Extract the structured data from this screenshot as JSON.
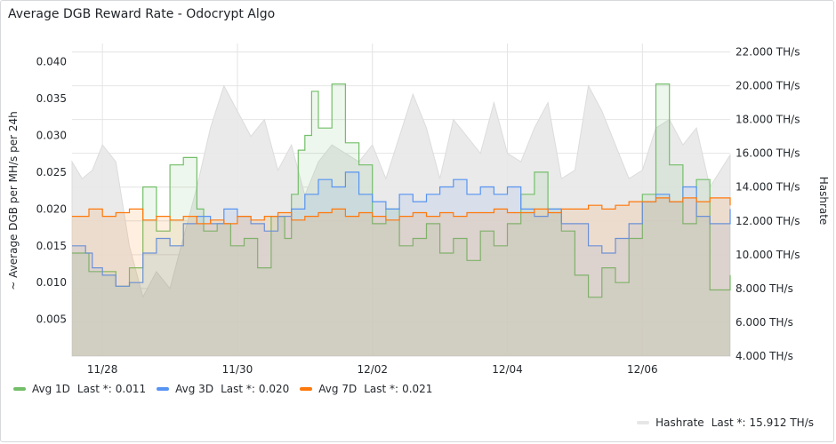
{
  "panel": {
    "title": "Average DGB Reward Rate - Odocrypt Algo"
  },
  "chart_data": {
    "type": "line",
    "title": "Average DGB Reward Rate - Odocrypt Algo",
    "ylabel": "~ Average DGB per MH/s per 24h",
    "y2label": "Hashrate",
    "x_ticks": [
      "11/28",
      "11/30",
      "12/02",
      "12/04",
      "12/06"
    ],
    "x_range_days": [
      27.55,
      37.3
    ],
    "ylim": [
      0,
      0.0425
    ],
    "y_ticks": [
      0.005,
      0.01,
      0.015,
      0.02,
      0.025,
      0.03,
      0.035,
      0.04
    ],
    "y_tick_labels": [
      "0.005",
      "0.010",
      "0.015",
      "0.020",
      "0.025",
      "0.030",
      "0.035",
      "0.040"
    ],
    "y2lim": [
      4.0,
      22.5
    ],
    "y2_ticks": [
      4,
      6,
      8,
      10,
      12,
      14,
      16,
      18,
      20,
      22
    ],
    "y2_tick_labels": [
      "4.000 TH/s",
      "6.000 TH/s",
      "8.000 TH/s",
      "10.000 TH/s",
      "12.000 TH/s",
      "14.000 TH/s",
      "16.000 TH/s",
      "18.000 TH/s",
      "20.000 TH/s",
      "22.000 TH/s"
    ],
    "grid": true,
    "legend_position": "bottom",
    "series": [
      {
        "name": "Avg 1D",
        "color": "#73bf69",
        "last_label": "Last *:",
        "last_value": "0.011",
        "x": [
          27.55,
          27.75,
          27.8,
          28.2,
          28.4,
          28.6,
          28.8,
          29.0,
          29.2,
          29.4,
          29.5,
          29.7,
          29.9,
          30.1,
          30.3,
          30.5,
          30.7,
          30.8,
          30.9,
          31.0,
          31.1,
          31.2,
          31.4,
          31.6,
          31.8,
          32.0,
          32.2,
          32.4,
          32.6,
          32.8,
          33.0,
          33.2,
          33.4,
          33.6,
          33.8,
          34.0,
          34.2,
          34.4,
          34.6,
          34.8,
          35.0,
          35.2,
          35.4,
          35.6,
          35.8,
          36.0,
          36.2,
          36.4,
          36.6,
          36.8,
          37.0,
          37.3
        ],
        "y": [
          0.014,
          0.014,
          0.0115,
          0.0095,
          0.012,
          0.023,
          0.017,
          0.026,
          0.027,
          0.02,
          0.017,
          0.018,
          0.015,
          0.016,
          0.012,
          0.019,
          0.016,
          0.022,
          0.028,
          0.03,
          0.036,
          0.031,
          0.037,
          0.029,
          0.026,
          0.018,
          0.02,
          0.015,
          0.016,
          0.018,
          0.014,
          0.016,
          0.013,
          0.017,
          0.015,
          0.018,
          0.022,
          0.025,
          0.02,
          0.017,
          0.011,
          0.008,
          0.012,
          0.01,
          0.016,
          0.022,
          0.037,
          0.026,
          0.018,
          0.024,
          0.009,
          0.011
        ]
      },
      {
        "name": "Avg 3D",
        "color": "#5794f2",
        "last_label": "Last *:",
        "last_value": "0.020",
        "x": [
          27.55,
          27.75,
          27.85,
          28.0,
          28.2,
          28.4,
          28.6,
          28.8,
          29.0,
          29.2,
          29.4,
          29.6,
          29.8,
          30.0,
          30.2,
          30.4,
          30.6,
          30.8,
          31.0,
          31.2,
          31.4,
          31.6,
          31.8,
          32.0,
          32.2,
          32.4,
          32.6,
          32.8,
          33.0,
          33.2,
          33.4,
          33.6,
          33.8,
          34.0,
          34.2,
          34.4,
          34.6,
          34.8,
          35.0,
          35.2,
          35.4,
          35.6,
          35.8,
          36.0,
          36.2,
          36.4,
          36.6,
          36.8,
          37.0,
          37.3
        ],
        "y": [
          0.015,
          0.014,
          0.012,
          0.011,
          0.0095,
          0.01,
          0.014,
          0.016,
          0.015,
          0.018,
          0.019,
          0.018,
          0.02,
          0.019,
          0.018,
          0.017,
          0.019,
          0.02,
          0.022,
          0.024,
          0.023,
          0.025,
          0.022,
          0.021,
          0.02,
          0.022,
          0.021,
          0.022,
          0.023,
          0.024,
          0.022,
          0.023,
          0.022,
          0.023,
          0.02,
          0.019,
          0.02,
          0.018,
          0.018,
          0.015,
          0.014,
          0.016,
          0.018,
          0.021,
          0.022,
          0.021,
          0.023,
          0.019,
          0.018,
          0.02
        ]
      },
      {
        "name": "Avg 7D",
        "color": "#ff780a",
        "last_label": "Last *:",
        "last_value": "0.021",
        "x": [
          27.55,
          27.8,
          28.0,
          28.2,
          28.4,
          28.6,
          28.8,
          29.0,
          29.2,
          29.4,
          29.6,
          29.8,
          30.0,
          30.2,
          30.4,
          30.6,
          30.8,
          31.0,
          31.2,
          31.4,
          31.6,
          31.8,
          32.0,
          32.2,
          32.4,
          32.6,
          32.8,
          33.0,
          33.2,
          33.4,
          33.6,
          33.8,
          34.0,
          34.2,
          34.4,
          34.6,
          34.8,
          35.0,
          35.2,
          35.4,
          35.6,
          35.8,
          36.0,
          36.2,
          36.4,
          36.6,
          36.8,
          37.0,
          37.3
        ],
        "y": [
          0.019,
          0.02,
          0.019,
          0.0195,
          0.02,
          0.0185,
          0.019,
          0.0185,
          0.019,
          0.018,
          0.0185,
          0.018,
          0.019,
          0.0185,
          0.019,
          0.0195,
          0.0185,
          0.019,
          0.0195,
          0.02,
          0.019,
          0.0195,
          0.019,
          0.0185,
          0.019,
          0.0195,
          0.019,
          0.0195,
          0.019,
          0.0195,
          0.0195,
          0.02,
          0.0195,
          0.0195,
          0.02,
          0.0195,
          0.02,
          0.02,
          0.0205,
          0.02,
          0.0205,
          0.021,
          0.021,
          0.0215,
          0.021,
          0.0215,
          0.021,
          0.0215,
          0.0205
        ]
      },
      {
        "name": "Hashrate",
        "color": "#e6e6e6",
        "axis": "right",
        "unit": "TH/s",
        "last_label": "Last *:",
        "last_value": "15.912 TH/s",
        "x": [
          27.55,
          27.7,
          27.85,
          28.0,
          28.2,
          28.4,
          28.6,
          28.8,
          29.0,
          29.2,
          29.4,
          29.6,
          29.8,
          30.0,
          30.2,
          30.4,
          30.6,
          30.8,
          31.0,
          31.2,
          31.4,
          31.6,
          31.8,
          32.0,
          32.2,
          32.4,
          32.6,
          32.8,
          33.0,
          33.2,
          33.4,
          33.6,
          33.8,
          34.0,
          34.2,
          34.4,
          34.6,
          34.8,
          35.0,
          35.2,
          35.4,
          35.6,
          35.8,
          36.0,
          36.2,
          36.4,
          36.6,
          36.8,
          37.0,
          37.3
        ],
        "y": [
          15.5,
          14.5,
          15.0,
          16.5,
          15.5,
          10.5,
          7.5,
          9.0,
          8.0,
          11.0,
          14.0,
          17.5,
          20.0,
          18.5,
          17.0,
          18.0,
          15.0,
          16.5,
          13.5,
          15.5,
          16.5,
          16.0,
          15.5,
          16.5,
          14.5,
          17.0,
          19.5,
          17.5,
          14.5,
          18.0,
          17.0,
          16.0,
          19.0,
          16.0,
          15.5,
          17.5,
          19.0,
          14.5,
          15.0,
          20.0,
          18.5,
          16.5,
          14.5,
          15.0,
          17.5,
          18.0,
          16.5,
          17.5,
          14.0,
          15.9
        ]
      }
    ]
  }
}
